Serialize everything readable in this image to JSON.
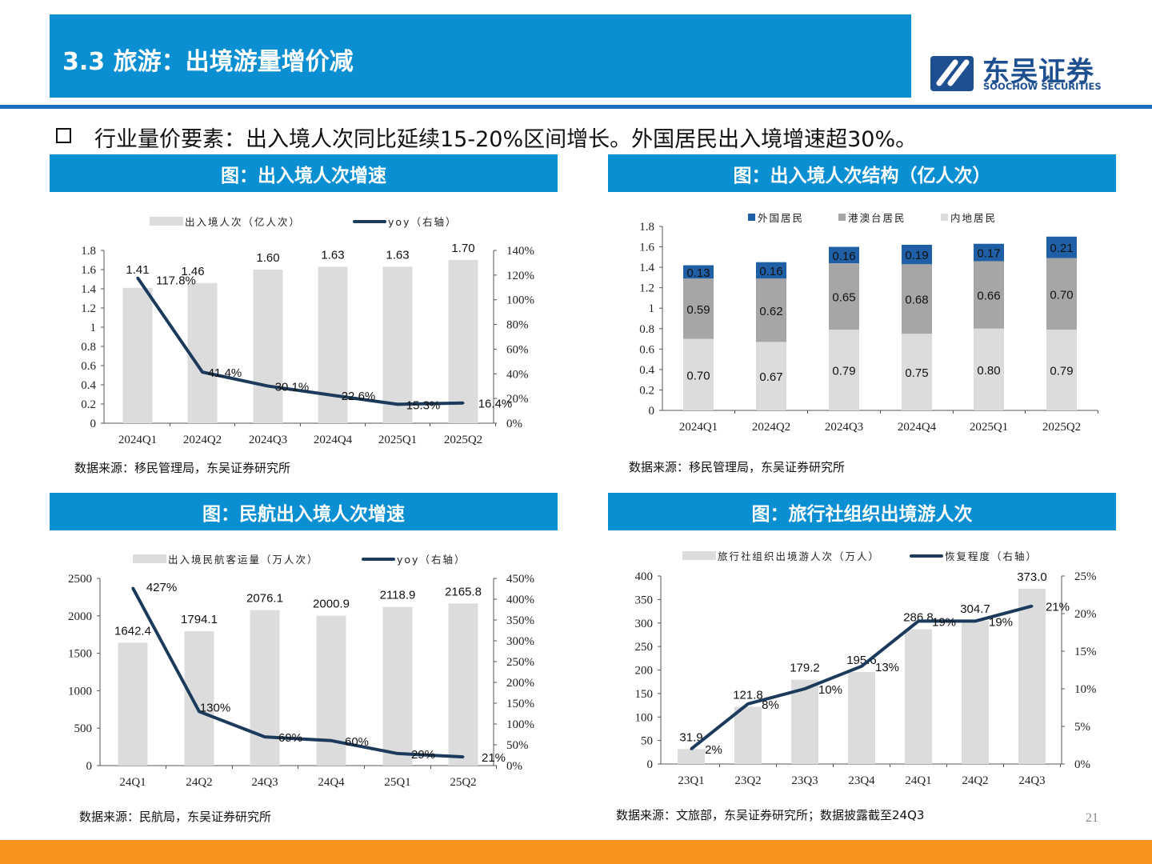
{
  "header": {
    "title": "3.3 旅游：出境游量增价减"
  },
  "logo": {
    "cn": "东吴证券",
    "en": "SOOCHOW SECURITIES"
  },
  "bullet": "行业量价要素：出入境人次同比延续15-20%区间增长。外国居民出入境增速超30%。",
  "page_number": "21",
  "colors": {
    "header_blue": "#0a8fd2",
    "bar_gray": "#dcdcdc",
    "line_navy": "#1b3a5c",
    "mid_gray": "#a6a6a6",
    "foreign_blue": "#1f5fa5",
    "footer_orange": "#f7941d"
  },
  "panels": [
    {
      "title": "图：出入境人次增速",
      "source": "数据来源：移民管理局，东吴证券研究所"
    },
    {
      "title": "图：出入境人次结构（亿人次）",
      "source": "数据来源：移民管理局，东吴证券研究所"
    },
    {
      "title": "图：民航出入境人次增速",
      "source": "数据来源：民航局，东吴证券研究所"
    },
    {
      "title": "图：旅行社组织出境游人次",
      "source": "数据来源：文旅部，东吴证券研究所；数据披露截至24Q3"
    }
  ],
  "chart_data": [
    {
      "type": "bar+line",
      "categories": [
        "2024Q1",
        "2024Q2",
        "2024Q3",
        "2024Q4",
        "2025Q1",
        "2025Q2"
      ],
      "series": [
        {
          "name": "出入境人次（亿人次）",
          "type": "bar",
          "axis": "left",
          "values": [
            1.41,
            1.46,
            1.6,
            1.63,
            1.63,
            1.7
          ],
          "labels": [
            "1.41",
            "1.46",
            "1.60",
            "1.63",
            "1.63",
            "1.70"
          ]
        },
        {
          "name": "yoy（右轴）",
          "type": "line",
          "axis": "right",
          "values": [
            117.8,
            41.4,
            30.1,
            22.6,
            15.3,
            16.4
          ],
          "labels": [
            "117.8%",
            "41.4%",
            "30.1%",
            "22.6%",
            "15.3%",
            "16.4%"
          ]
        }
      ],
      "ylim": [
        0,
        1.8
      ],
      "y_ticks": [
        "0",
        "0.2",
        "0.4",
        "0.6",
        "0.8",
        "1",
        "1.2",
        "1.4",
        "1.6",
        "1.8"
      ],
      "y2lim": [
        0,
        140
      ],
      "y2_ticks": [
        "0%",
        "20%",
        "40%",
        "60%",
        "80%",
        "100%",
        "120%",
        "140%"
      ],
      "legend": "top",
      "grid": false
    },
    {
      "type": "stacked-bar",
      "categories": [
        "2024Q1",
        "2024Q2",
        "2024Q3",
        "2024Q4",
        "2025Q1",
        "2025Q2"
      ],
      "series": [
        {
          "name": "内地居民",
          "values": [
            0.7,
            0.67,
            0.79,
            0.75,
            0.8,
            0.79
          ],
          "labels": [
            "0.70",
            "0.67",
            "0.79",
            "0.75",
            "0.80",
            "0.79"
          ],
          "color": "#dcdcdc"
        },
        {
          "name": "港澳台居民",
          "values": [
            0.59,
            0.62,
            0.65,
            0.68,
            0.66,
            0.7
          ],
          "labels": [
            "0.59",
            "0.62",
            "0.65",
            "0.68",
            "0.66",
            "0.70"
          ],
          "color": "#a6a6a6"
        },
        {
          "name": "外国居民",
          "values": [
            0.13,
            0.16,
            0.16,
            0.19,
            0.17,
            0.21
          ],
          "labels": [
            "0.13",
            "0.16",
            "0.16",
            "0.19",
            "0.17",
            "0.21"
          ],
          "color": "#1f5fa5"
        }
      ],
      "ylim": [
        0,
        1.8
      ],
      "y_ticks": [
        "0",
        "0.2",
        "0.4",
        "0.6",
        "0.8",
        "1",
        "1.2",
        "1.4",
        "1.6",
        "1.8"
      ],
      "legend": "top",
      "grid": false
    },
    {
      "type": "bar+line",
      "categories": [
        "24Q1",
        "24Q2",
        "24Q3",
        "24Q4",
        "25Q1",
        "25Q2"
      ],
      "series": [
        {
          "name": "出入境民航客运量（万人次）",
          "type": "bar",
          "axis": "left",
          "values": [
            1642.4,
            1794.1,
            2076.1,
            2000.9,
            2118.9,
            2165.8
          ],
          "labels": [
            "1642.4",
            "1794.1",
            "2076.1",
            "2000.9",
            "2118.9",
            "2165.8"
          ]
        },
        {
          "name": "yoy（右轴）",
          "type": "line",
          "axis": "right",
          "values": [
            427,
            130,
            69,
            60,
            29,
            21
          ],
          "labels": [
            "427%",
            "130%",
            "69%",
            "60%",
            "29%",
            "21%"
          ]
        }
      ],
      "ylim": [
        0,
        2500
      ],
      "y_ticks": [
        "0",
        "500",
        "1000",
        "1500",
        "2000",
        "2500"
      ],
      "y2lim": [
        0,
        450
      ],
      "y2_ticks": [
        "0%",
        "50%",
        "100%",
        "150%",
        "200%",
        "250%",
        "300%",
        "350%",
        "400%",
        "450%"
      ],
      "legend": "top",
      "grid": false
    },
    {
      "type": "bar+line",
      "categories": [
        "23Q1",
        "23Q2",
        "23Q3",
        "23Q4",
        "24Q1",
        "24Q2",
        "24Q3"
      ],
      "series": [
        {
          "name": "旅行社组织出境游人次（万人）",
          "type": "bar",
          "axis": "left",
          "values": [
            31.9,
            121.8,
            179.2,
            195.6,
            286.8,
            304.7,
            373.0
          ],
          "labels": [
            "31.9",
            "121.8",
            "179.2",
            "195.6",
            "286.8",
            "304.7",
            "373.0"
          ]
        },
        {
          "name": "恢复程度（右轴）",
          "type": "line",
          "axis": "right",
          "values": [
            2,
            8,
            10,
            13,
            19,
            19,
            21
          ],
          "labels": [
            "2%",
            "8%",
            "10%",
            "13%",
            "19%",
            "19%",
            "21%"
          ]
        }
      ],
      "ylim": [
        0,
        400
      ],
      "y_ticks": [
        "0",
        "50",
        "100",
        "150",
        "200",
        "250",
        "300",
        "350",
        "400"
      ],
      "y2lim": [
        0,
        25
      ],
      "y2_ticks": [
        "0%",
        "5%",
        "10%",
        "15%",
        "20%",
        "25%"
      ],
      "legend": "top",
      "grid": false
    }
  ]
}
